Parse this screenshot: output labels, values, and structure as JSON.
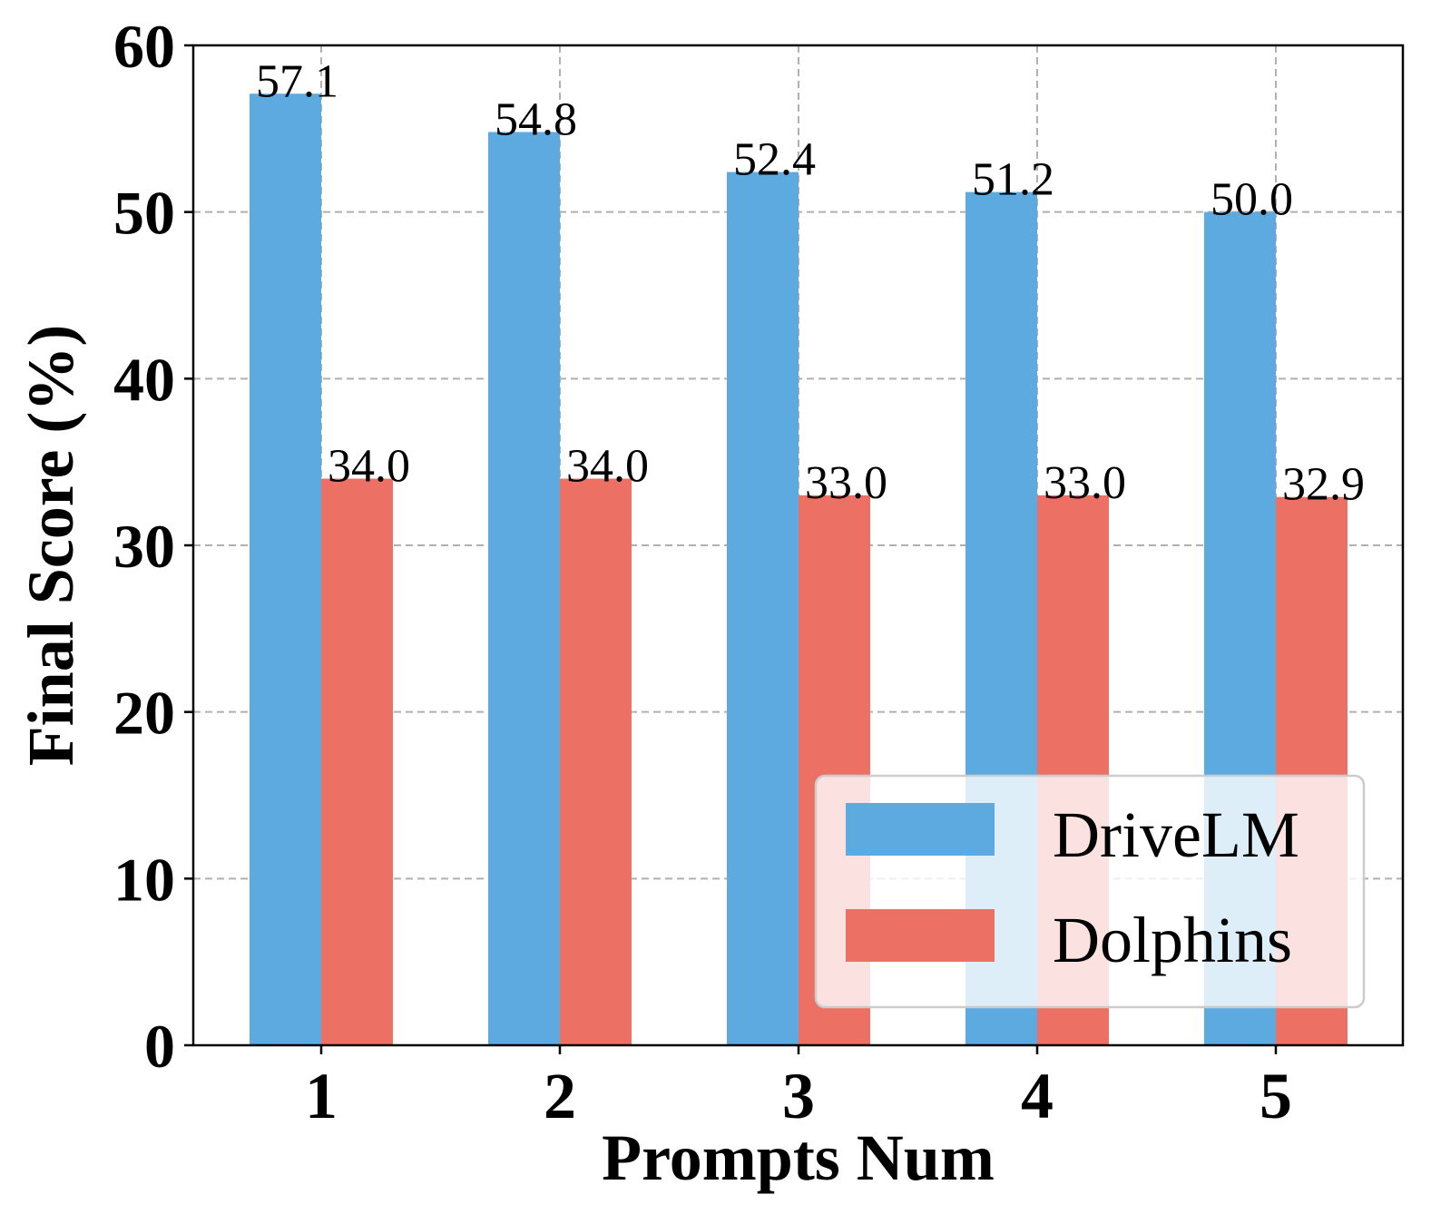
{
  "chart_data": {
    "type": "bar",
    "categories": [
      "1",
      "2",
      "3",
      "4",
      "5"
    ],
    "series": [
      {
        "name": "DriveLM",
        "values": [
          57.1,
          54.8,
          52.4,
          51.2,
          50.0
        ],
        "color": "#5DAAE0"
      },
      {
        "name": "Dolphins",
        "values": [
          34.0,
          34.0,
          33.0,
          33.0,
          32.9
        ],
        "color": "#EC7063"
      }
    ],
    "value_labels": [
      [
        "57.1",
        "54.8",
        "52.4",
        "51.2",
        "50.0"
      ],
      [
        "34.0",
        "34.0",
        "33.0",
        "33.0",
        "32.9"
      ]
    ],
    "xlabel": "Prompts Num",
    "ylabel": "Final Score (%)",
    "ylim": [
      0,
      60
    ],
    "yticks": [
      0,
      10,
      20,
      30,
      40,
      50,
      60
    ],
    "grid": true,
    "legend_position": "lower-right"
  }
}
